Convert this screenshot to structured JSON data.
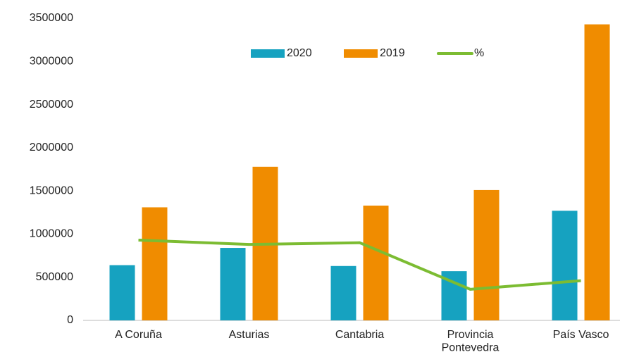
{
  "chart_data": {
    "type": "bar+line",
    "categories": [
      "A Coruña",
      "Asturias",
      "Cantabria",
      "Provincia\nPontevedra",
      "País Vasco"
    ],
    "series": [
      {
        "name": "2020",
        "type": "bar",
        "color": "#16a2c0",
        "values": [
          640000,
          840000,
          630000,
          570000,
          1270000
        ]
      },
      {
        "name": "2019",
        "type": "bar",
        "color": "#f08c00",
        "values": [
          1310000,
          1780000,
          1330000,
          1510000,
          3430000
        ]
      },
      {
        "name": "%",
        "type": "line",
        "color": "#7cbc32",
        "values": [
          930000,
          880000,
          900000,
          360000,
          460000
        ]
      }
    ],
    "ylim": [
      0,
      3500000
    ],
    "yticks": [
      0,
      500000,
      1000000,
      1500000,
      2000000,
      2500000,
      3000000,
      3500000
    ],
    "grid": false,
    "legend": "top"
  }
}
